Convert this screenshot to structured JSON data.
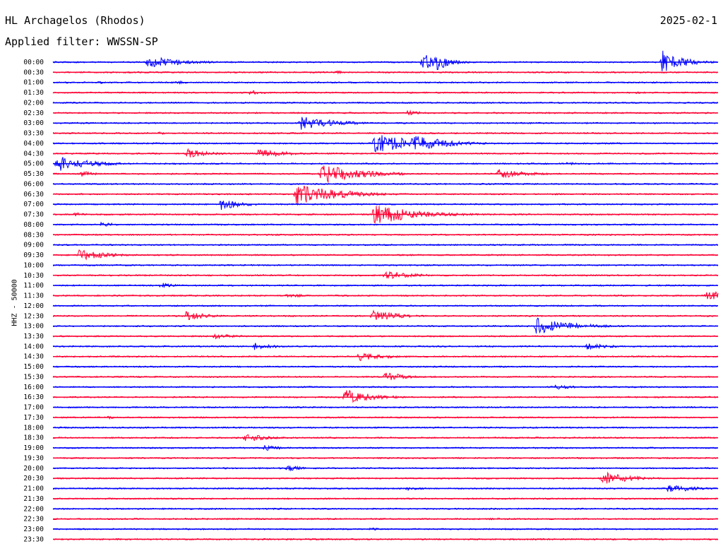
{
  "header": {
    "station": "HL Archagelos (Rhodos)",
    "filter": "Applied filter: WWSSN-SP",
    "date": "2025-02-1"
  },
  "chart_data": {
    "type": "line",
    "title": "HL Archagelos (Rhodos)",
    "subtitle": "Applied filter: WWSSN-SP",
    "ylabel": "HHZ - 50000",
    "colors": [
      "#0000ff",
      "#ff0033"
    ],
    "trace_labels": [
      "00:00",
      "00:30",
      "01:00",
      "01:30",
      "02:00",
      "02:30",
      "03:00",
      "03:30",
      "04:00",
      "04:30",
      "05:00",
      "05:30",
      "06:00",
      "06:30",
      "07:00",
      "07:30",
      "08:00",
      "08:30",
      "09:00",
      "09:30",
      "10:00",
      "10:30",
      "11:00",
      "11:30",
      "12:00",
      "12:30",
      "13:00",
      "13:30",
      "14:00",
      "14:30",
      "15:00",
      "15:30",
      "16:00",
      "16:30",
      "17:00",
      "17:30",
      "18:00",
      "18:30",
      "19:00",
      "19:30",
      "20:00",
      "20:30",
      "21:00",
      "21:30",
      "22:00",
      "22:30",
      "23:00",
      "23:30"
    ],
    "x_unit": "minutes into trace (0-30)",
    "events": [
      {
        "trace": "00:00",
        "minute": 4.3,
        "amp": 3.2,
        "dur": 2.5
      },
      {
        "trace": "00:00",
        "minute": 16.7,
        "amp": 4.5,
        "dur": 1.2
      },
      {
        "trace": "00:00",
        "minute": 17.3,
        "amp": 5.0,
        "dur": 1.0
      },
      {
        "trace": "00:00",
        "minute": 27.5,
        "amp": 6.0,
        "dur": 1.5
      },
      {
        "trace": "00:30",
        "minute": 12.8,
        "amp": 0.8,
        "dur": 1.2
      },
      {
        "trace": "00:30",
        "minute": 23.1,
        "amp": 0.6,
        "dur": 1.0
      },
      {
        "trace": "01:00",
        "minute": 2.1,
        "amp": 0.7,
        "dur": 1.0
      },
      {
        "trace": "01:00",
        "minute": 5.6,
        "amp": 0.8,
        "dur": 1.0
      },
      {
        "trace": "01:30",
        "minute": 8.9,
        "amp": 1.2,
        "dur": 1.2
      },
      {
        "trace": "01:30",
        "minute": 26.3,
        "amp": 0.6,
        "dur": 1.0
      },
      {
        "trace": "02:30",
        "minute": 16.0,
        "amp": 1.3,
        "dur": 1.5
      },
      {
        "trace": "03:00",
        "minute": 11.2,
        "amp": 3.5,
        "dur": 2.5
      },
      {
        "trace": "03:30",
        "minute": 4.7,
        "amp": 0.8,
        "dur": 1.2
      },
      {
        "trace": "04:00",
        "minute": 14.5,
        "amp": 5.5,
        "dur": 3.0
      },
      {
        "trace": "04:00",
        "minute": 16.2,
        "amp": 4.5,
        "dur": 2.5
      },
      {
        "trace": "04:30",
        "minute": 6.1,
        "amp": 2.5,
        "dur": 1.5
      },
      {
        "trace": "04:30",
        "minute": 9.3,
        "amp": 2.5,
        "dur": 2.0
      },
      {
        "trace": "05:00",
        "minute": 0.2,
        "amp": 4.0,
        "dur": 2.5
      },
      {
        "trace": "05:00",
        "minute": 23.2,
        "amp": 0.8,
        "dur": 1.5
      },
      {
        "trace": "05:30",
        "minute": 1.3,
        "amp": 1.5,
        "dur": 1.0
      },
      {
        "trace": "05:30",
        "minute": 12.1,
        "amp": 5.0,
        "dur": 3.0
      },
      {
        "trace": "05:30",
        "minute": 20.1,
        "amp": 2.5,
        "dur": 2.0
      },
      {
        "trace": "06:30",
        "minute": 11.0,
        "amp": 6.0,
        "dur": 3.0
      },
      {
        "trace": "07:00",
        "minute": 7.6,
        "amp": 3.0,
        "dur": 1.5
      },
      {
        "trace": "07:30",
        "minute": 1.0,
        "amp": 1.0,
        "dur": 1.0
      },
      {
        "trace": "07:30",
        "minute": 14.5,
        "amp": 5.5,
        "dur": 3.0
      },
      {
        "trace": "08:00",
        "minute": 2.2,
        "amp": 1.5,
        "dur": 1.0
      },
      {
        "trace": "09:30",
        "minute": 1.2,
        "amp": 3.0,
        "dur": 2.0
      },
      {
        "trace": "10:30",
        "minute": 15.0,
        "amp": 2.5,
        "dur": 2.0
      },
      {
        "trace": "11:00",
        "minute": 4.9,
        "amp": 1.5,
        "dur": 1.0
      },
      {
        "trace": "11:30",
        "minute": 10.6,
        "amp": 1.3,
        "dur": 1.2
      },
      {
        "trace": "11:30",
        "minute": 29.5,
        "amp": 3.0,
        "dur": 1.5
      },
      {
        "trace": "12:30",
        "minute": 6.0,
        "amp": 2.5,
        "dur": 1.5
      },
      {
        "trace": "12:30",
        "minute": 14.4,
        "amp": 3.5,
        "dur": 1.8
      },
      {
        "trace": "13:00",
        "minute": 21.8,
        "amp": 4.5,
        "dur": 2.5
      },
      {
        "trace": "13:30",
        "minute": 7.3,
        "amp": 1.6,
        "dur": 1.5
      },
      {
        "trace": "14:00",
        "minute": 9.1,
        "amp": 2.0,
        "dur": 1.5
      },
      {
        "trace": "14:00",
        "minute": 24.1,
        "amp": 2.0,
        "dur": 1.5
      },
      {
        "trace": "14:30",
        "minute": 13.8,
        "amp": 2.5,
        "dur": 2.0
      },
      {
        "trace": "15:30",
        "minute": 15.0,
        "amp": 2.5,
        "dur": 1.5
      },
      {
        "trace": "16:00",
        "minute": 22.6,
        "amp": 1.4,
        "dur": 1.5
      },
      {
        "trace": "16:30",
        "minute": 13.2,
        "amp": 4.0,
        "dur": 2.0
      },
      {
        "trace": "17:30",
        "minute": 2.5,
        "amp": 0.8,
        "dur": 1.0
      },
      {
        "trace": "18:30",
        "minute": 8.7,
        "amp": 2.0,
        "dur": 1.8
      },
      {
        "trace": "19:00",
        "minute": 9.5,
        "amp": 1.5,
        "dur": 1.5
      },
      {
        "trace": "20:00",
        "minute": 10.6,
        "amp": 1.5,
        "dur": 1.2
      },
      {
        "trace": "20:30",
        "minute": 24.8,
        "amp": 3.5,
        "dur": 2.0
      },
      {
        "trace": "21:00",
        "minute": 16.0,
        "amp": 1.2,
        "dur": 1.2
      },
      {
        "trace": "21:00",
        "minute": 27.8,
        "amp": 2.5,
        "dur": 1.8
      },
      {
        "trace": "22:30",
        "minute": 19.8,
        "amp": 0.8,
        "dur": 1.0
      },
      {
        "trace": "23:00",
        "minute": 14.3,
        "amp": 0.8,
        "dur": 1.2
      }
    ]
  }
}
